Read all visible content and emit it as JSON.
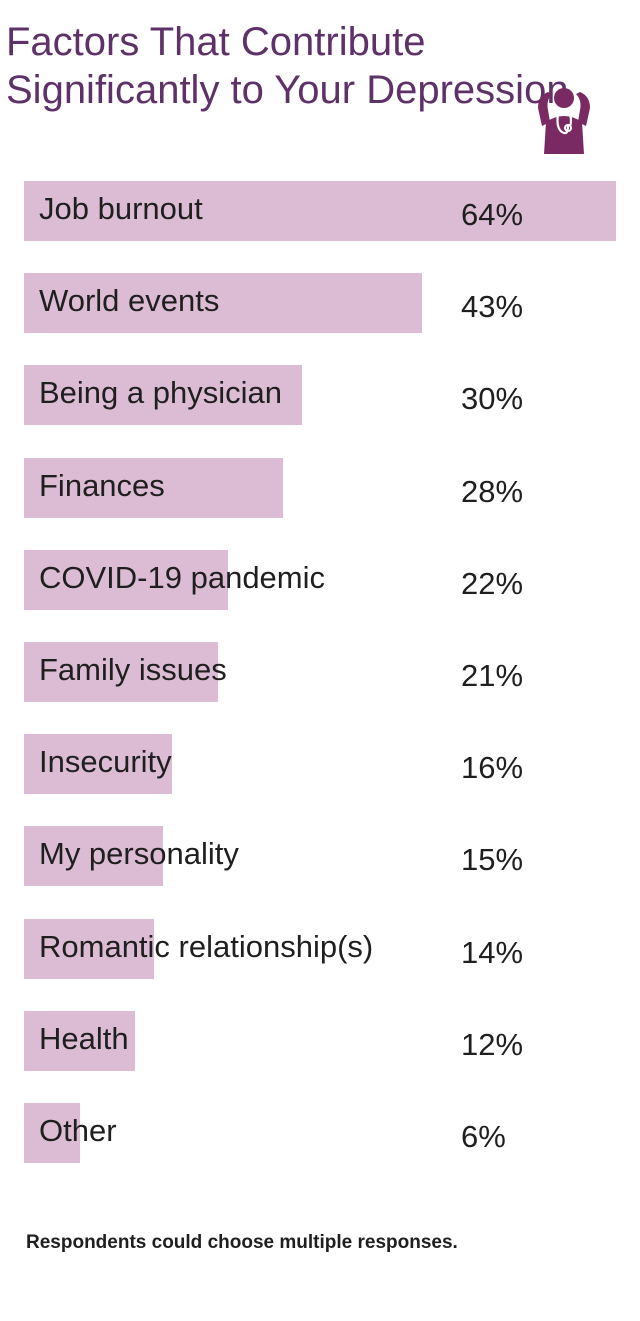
{
  "chart_data": {
    "type": "bar",
    "orientation": "horizontal",
    "title_lines": [
      "Factors That Contribute",
      "Significantly to Your Depression"
    ],
    "categories": [
      "Job burnout",
      "World events",
      "Being a physician",
      "Finances",
      "COVID-19 pandemic",
      "Family issues",
      "Insecurity",
      "My personality",
      "Romantic relationship(s)",
      "Health",
      "Other"
    ],
    "values": [
      64,
      43,
      30,
      28,
      22,
      21,
      16,
      15,
      14,
      12,
      6
    ],
    "value_labels": [
      "64%",
      "43%",
      "30%",
      "28%",
      "22%",
      "21%",
      "16%",
      "15%",
      "14%",
      "12%",
      "6%"
    ],
    "xlim": [
      0,
      64
    ],
    "grid": false,
    "bar_color": "#dcbcd4",
    "title_color": "#5e3268"
  },
  "icon": "doctor-holding-head-icon",
  "footnote": "Respondents could choose multiple responses."
}
